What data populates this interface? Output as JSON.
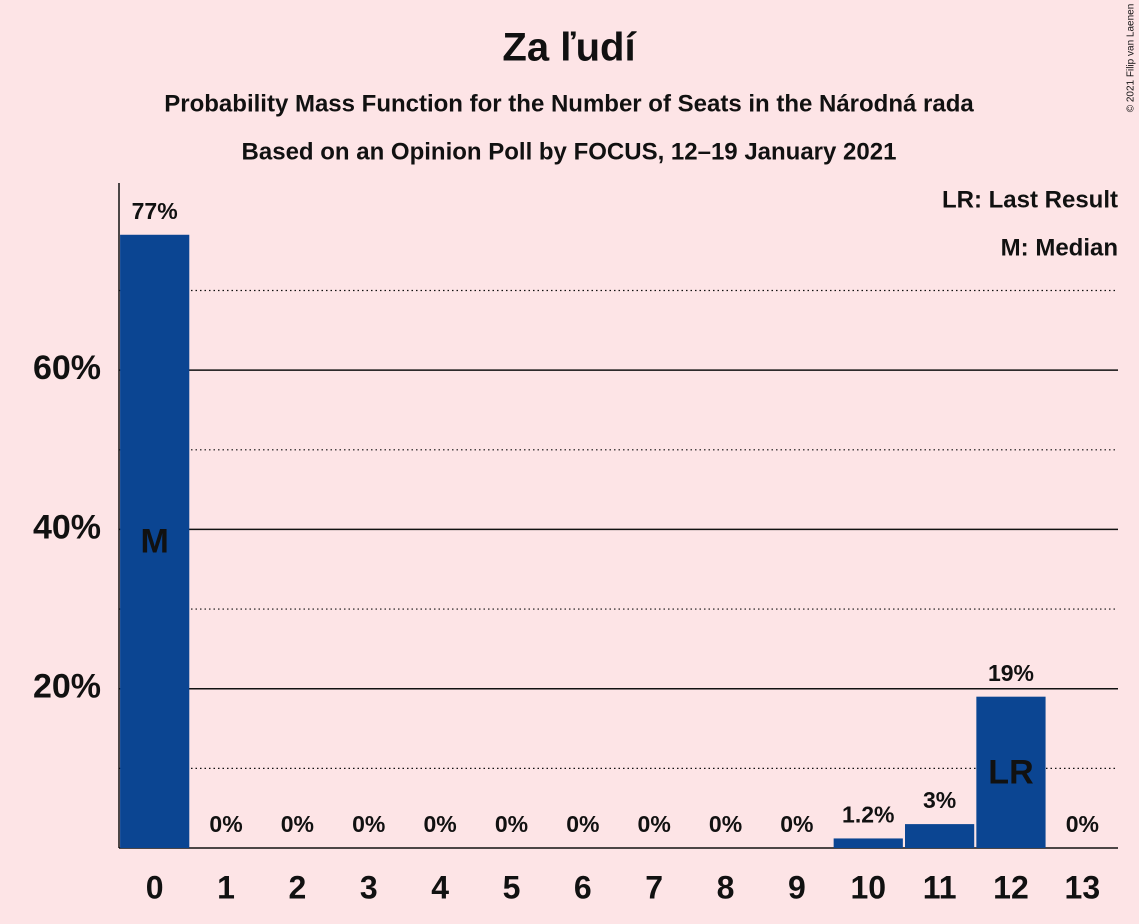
{
  "chart_data": {
    "type": "bar",
    "title": "Za ľudí",
    "subtitle": "Probability Mass Function for the Number of Seats in the Národná rada",
    "subtitle2": "Based on an Opinion Poll by FOCUS, 12–19 January 2021",
    "copyright": "© 2021 Filip van Laenen",
    "legend": [
      "LR: Last Result",
      "M: Median"
    ],
    "categories": [
      "0",
      "1",
      "2",
      "3",
      "4",
      "5",
      "6",
      "7",
      "8",
      "9",
      "10",
      "11",
      "12",
      "13"
    ],
    "values": [
      77,
      0,
      0,
      0,
      0,
      0,
      0,
      0,
      0,
      0,
      1.2,
      3,
      19,
      0
    ],
    "value_labels": [
      "77%",
      "0%",
      "0%",
      "0%",
      "0%",
      "0%",
      "0%",
      "0%",
      "0%",
      "0%",
      "1.2%",
      "3%",
      "19%",
      "0%"
    ],
    "bar_labels": [
      "M",
      null,
      null,
      null,
      null,
      null,
      null,
      null,
      null,
      null,
      null,
      null,
      "LR",
      null
    ],
    "color": "#0b4592",
    "ylim": [
      0,
      83.5
    ],
    "yticks": [
      {
        "value": 20,
        "label": "20%"
      },
      {
        "value": 40,
        "label": "40%"
      },
      {
        "value": 60,
        "label": "60%"
      }
    ],
    "minor_yticks": [
      10,
      30,
      50,
      70
    ],
    "grid": true
  }
}
